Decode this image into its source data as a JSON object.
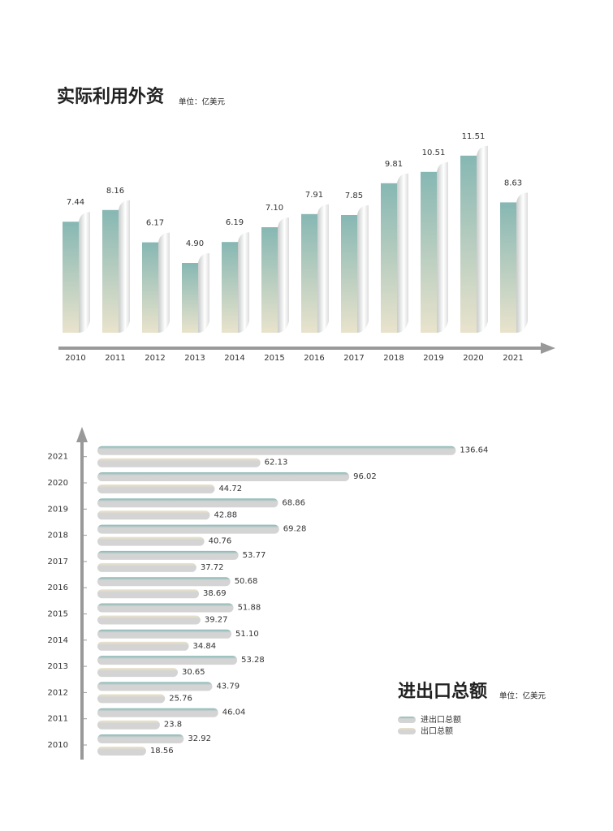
{
  "chart_data": [
    {
      "type": "bar",
      "title": "实际利用外资",
      "subtitle": "单位：亿美元",
      "categories": [
        "2010",
        "2011",
        "2012",
        "2013",
        "2014",
        "2015",
        "2016",
        "2017",
        "2018",
        "2019",
        "2020",
        "2021"
      ],
      "values": [
        7.44,
        8.16,
        6.17,
        4.9,
        6.19,
        7.1,
        7.91,
        7.85,
        9.81,
        10.51,
        11.51,
        8.63
      ],
      "value_labels": [
        "7.44",
        "8.16",
        "6.17",
        "4.90",
        "6.19",
        "7.10",
        "7.91",
        "7.85",
        "9.81",
        "10.51",
        "11.51",
        "8.63"
      ],
      "color": "#86b7b3"
    },
    {
      "type": "hbar",
      "title": "进出口总额",
      "subtitle": "单位：亿美元",
      "categories": [
        "2010",
        "2011",
        "2012",
        "2013",
        "2014",
        "2015",
        "2016",
        "2017",
        "2018",
        "2019",
        "2020",
        "2021"
      ],
      "series": [
        {
          "name": "进出口总额",
          "color": "#86b7b3",
          "values": [
            32.92,
            46.04,
            43.79,
            53.28,
            51.1,
            51.88,
            50.68,
            53.77,
            69.28,
            68.86,
            96.02,
            136.64
          ],
          "value_labels": [
            "32.92",
            "46.04",
            "43.79",
            "53.28",
            "51.10",
            "51.88",
            "50.68",
            "53.77",
            "69.28",
            "68.86",
            "96.02",
            "136.64"
          ]
        },
        {
          "name": "出口总额",
          "color": "#ebe3c9",
          "values": [
            18.56,
            23.8,
            25.76,
            30.65,
            34.84,
            39.27,
            38.69,
            37.72,
            40.76,
            42.88,
            44.72,
            62.13
          ]
        }
      ]
    }
  ]
}
